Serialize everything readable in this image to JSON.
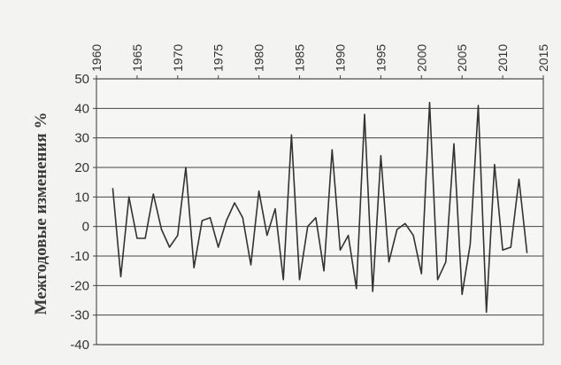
{
  "chart_data": {
    "type": "line",
    "title": "",
    "xlabel": "",
    "ylabel": "Межгодовые изменения %",
    "xlim": [
      1960,
      2015
    ],
    "ylim": [
      -40,
      50
    ],
    "x_ticks": [
      "1960",
      "1965",
      "1970",
      "1975",
      "1980",
      "1985",
      "1990",
      "1995",
      "2000",
      "2005",
      "2010",
      "2015"
    ],
    "y_ticks": [
      "50",
      "40",
      "30",
      "20",
      "10",
      "0",
      "-10",
      "-20",
      "-30",
      "-40"
    ],
    "x_tick_values": [
      1960,
      1965,
      1970,
      1975,
      1980,
      1985,
      1990,
      1995,
      2000,
      2005,
      2010,
      2015
    ],
    "y_tick_values": [
      50,
      40,
      30,
      20,
      10,
      0,
      -10,
      -20,
      -30,
      -40
    ],
    "grid": "horizontal",
    "legend": "none",
    "line_color": "#333333",
    "x_axis_position": "top",
    "series": [
      {
        "x": [
          1962,
          1963,
          1964,
          1965,
          1966,
          1967,
          1968,
          1969,
          1970,
          1971,
          1972,
          1973,
          1974,
          1975,
          1976,
          1977,
          1978,
          1979,
          1980,
          1981,
          1982,
          1983,
          1984,
          1985,
          1986,
          1987,
          1988,
          1989,
          1990,
          1991,
          1992,
          1993,
          1994,
          1995,
          1996,
          1997,
          1998,
          1999,
          2000,
          2001,
          2002,
          2003,
          2004,
          2005,
          2006,
          2007,
          2008,
          2009,
          2010,
          2011,
          2012,
          2013,
          2014
        ],
        "values": [
          13,
          -17,
          10,
          -4,
          -4,
          11,
          -1,
          -7,
          -3,
          20,
          -14,
          2,
          3,
          -7,
          2,
          8,
          3,
          -13,
          12,
          -3,
          6,
          -18,
          31,
          -18,
          0,
          3,
          -15,
          26,
          -8,
          -3,
          -21,
          38,
          -22,
          24,
          -12,
          -1,
          1,
          -3,
          -16,
          42,
          -18,
          -12,
          28,
          -23,
          -6,
          41,
          -29,
          21,
          -8,
          -7,
          16,
          -9,
          null
        ]
      }
    ]
  }
}
